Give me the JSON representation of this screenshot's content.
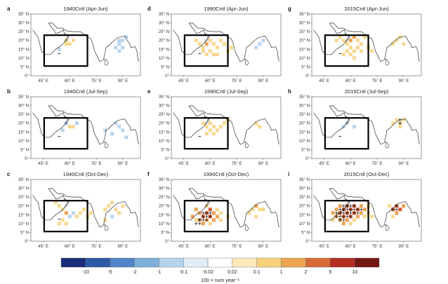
{
  "figure": {
    "lat_ticks": [
      "0°",
      "5° N",
      "10° N",
      "15° N",
      "20° N",
      "25° N",
      "30° N",
      "35° N"
    ],
    "lon_ticks": [
      "45° E",
      "60° E",
      "75° E",
      "90° E"
    ],
    "panels": [
      {
        "letter": "a",
        "title": "1940Cntl (Apr-Jun)",
        "cells": [
          [
            58,
            20,
            1
          ],
          [
            58,
            18,
            1
          ],
          [
            60,
            18,
            1
          ],
          [
            62,
            20,
            1
          ],
          [
            54,
            15,
            -1
          ],
          [
            88,
            20,
            -1
          ],
          [
            90,
            20,
            -1
          ],
          [
            88,
            18,
            -1
          ],
          [
            86,
            16,
            -1
          ],
          [
            90,
            16,
            -1
          ],
          [
            88,
            14,
            -1
          ],
          [
            92,
            22,
            -1
          ]
        ],
        "plus": []
      },
      {
        "letter": "b",
        "title": "1940Cntl (Jul-Sep)",
        "cells": [
          [
            58,
            20,
            -1
          ],
          [
            60,
            18,
            1
          ],
          [
            62,
            18,
            1
          ],
          [
            56,
            16,
            -1
          ],
          [
            64,
            20,
            -1
          ],
          [
            86,
            20,
            -1
          ],
          [
            88,
            18,
            -1
          ],
          [
            90,
            16,
            -1
          ],
          [
            84,
            14,
            -1
          ],
          [
            92,
            12,
            -1
          ],
          [
            80,
            16,
            -1
          ]
        ],
        "plus": []
      },
      {
        "letter": "c",
        "title": "1940Cntl (Oct-Dec)",
        "cells": [
          [
            52,
            22,
            1
          ],
          [
            54,
            20,
            1
          ],
          [
            56,
            18,
            1
          ],
          [
            58,
            16,
            2
          ],
          [
            60,
            14,
            -1
          ],
          [
            62,
            16,
            -1
          ],
          [
            64,
            14,
            1
          ],
          [
            66,
            16,
            1
          ],
          [
            68,
            18,
            1
          ],
          [
            56,
            12,
            1
          ],
          [
            58,
            10,
            1
          ],
          [
            54,
            10,
            1
          ],
          [
            70,
            14,
            1
          ],
          [
            72,
            16,
            1
          ],
          [
            80,
            18,
            1
          ],
          [
            82,
            20,
            1
          ],
          [
            84,
            22,
            1
          ],
          [
            86,
            18,
            1
          ],
          [
            88,
            16,
            1
          ],
          [
            84,
            14,
            -1
          ],
          [
            90,
            20,
            1
          ],
          [
            80,
            12,
            1
          ]
        ],
        "plus": []
      },
      {
        "letter": "d",
        "title": "1990Cntl (Apr-Jun)",
        "cells": [
          [
            52,
            20,
            1
          ],
          [
            54,
            18,
            1
          ],
          [
            56,
            16,
            1
          ],
          [
            58,
            18,
            2
          ],
          [
            60,
            20,
            1
          ],
          [
            62,
            18,
            1
          ],
          [
            64,
            16,
            1
          ],
          [
            66,
            20,
            1
          ],
          [
            68,
            18,
            1
          ],
          [
            60,
            14,
            1
          ],
          [
            62,
            12,
            1
          ],
          [
            58,
            12,
            1
          ],
          [
            64,
            12,
            1
          ],
          [
            70,
            14,
            1
          ],
          [
            72,
            16,
            1
          ],
          [
            56,
            14,
            1
          ],
          [
            88,
            18,
            -1
          ],
          [
            90,
            20,
            -1
          ],
          [
            86,
            16,
            -1
          ]
        ],
        "plus": []
      },
      {
        "letter": "e",
        "title": "1990Cntl (Jul-Sep)",
        "cells": [
          [
            56,
            20,
            1
          ],
          [
            58,
            18,
            1
          ],
          [
            60,
            20,
            1
          ],
          [
            62,
            18,
            1
          ],
          [
            64,
            16,
            1
          ],
          [
            66,
            18,
            1
          ],
          [
            60,
            16,
            1
          ],
          [
            58,
            14,
            1
          ],
          [
            62,
            14,
            1
          ],
          [
            68,
            20,
            1
          ],
          [
            70,
            22,
            1
          ],
          [
            86,
            20,
            1
          ],
          [
            88,
            18,
            1
          ]
        ],
        "plus": []
      },
      {
        "letter": "f",
        "title": "1990Cntl (Oct-Dec)",
        "cells": [
          [
            52,
            18,
            2
          ],
          [
            54,
            16,
            2
          ],
          [
            56,
            14,
            3
          ],
          [
            58,
            16,
            3
          ],
          [
            60,
            18,
            3
          ],
          [
            62,
            16,
            2
          ],
          [
            58,
            12,
            2
          ],
          [
            60,
            14,
            3
          ],
          [
            62,
            12,
            2
          ],
          [
            64,
            14,
            2
          ],
          [
            54,
            12,
            2
          ],
          [
            56,
            10,
            2
          ],
          [
            50,
            14,
            2
          ],
          [
            52,
            12,
            1
          ],
          [
            58,
            20,
            1
          ],
          [
            64,
            18,
            1
          ],
          [
            66,
            16,
            1
          ],
          [
            66,
            12,
            1
          ],
          [
            60,
            10,
            1
          ],
          [
            70,
            14,
            1
          ],
          [
            84,
            18,
            1
          ],
          [
            86,
            20,
            2
          ],
          [
            88,
            18,
            1
          ],
          [
            82,
            16,
            1
          ],
          [
            86,
            14,
            1
          ],
          [
            90,
            18,
            1
          ]
        ],
        "plus": [
          [
            56,
            16
          ],
          [
            58,
            16
          ],
          [
            60,
            16
          ],
          [
            56,
            14
          ],
          [
            58,
            14
          ],
          [
            60,
            14
          ],
          [
            54,
            12
          ],
          [
            56,
            12
          ],
          [
            58,
            12
          ],
          [
            52,
            10
          ],
          [
            54,
            10
          ]
        ]
      },
      {
        "letter": "g",
        "title": "2015Cntl (Apr-Jun)",
        "cells": [
          [
            52,
            20,
            1
          ],
          [
            54,
            22,
            1
          ],
          [
            56,
            20,
            1
          ],
          [
            58,
            18,
            1
          ],
          [
            60,
            20,
            2
          ],
          [
            62,
            22,
            2
          ],
          [
            64,
            20,
            1
          ],
          [
            66,
            18,
            1
          ],
          [
            68,
            22,
            1
          ],
          [
            58,
            14,
            1
          ],
          [
            60,
            16,
            1
          ],
          [
            62,
            14,
            1
          ],
          [
            64,
            16,
            1
          ],
          [
            66,
            14,
            1
          ],
          [
            60,
            12,
            1
          ],
          [
            62,
            10,
            1
          ],
          [
            56,
            12,
            1
          ],
          [
            70,
            16,
            1
          ],
          [
            72,
            14,
            1
          ],
          [
            84,
            18,
            1
          ],
          [
            86,
            20,
            1
          ],
          [
            88,
            22,
            1
          ],
          [
            90,
            18,
            1
          ]
        ],
        "plus": []
      },
      {
        "letter": "h",
        "title": "2015Cntl (Jul-Sep)",
        "cells": [
          [
            56,
            18,
            -1
          ],
          [
            58,
            20,
            -1
          ],
          [
            62,
            18,
            -1
          ],
          [
            84,
            20,
            1
          ],
          [
            86,
            22,
            1
          ],
          [
            88,
            20,
            1
          ],
          [
            90,
            22,
            1
          ],
          [
            88,
            18,
            1
          ]
        ],
        "plus": [
          [
            88,
            22
          ],
          [
            88,
            20
          ]
        ]
      },
      {
        "letter": "i",
        "title": "2015Cntl (Oct-Dec)",
        "cells": [
          [
            50,
            16,
            2
          ],
          [
            52,
            18,
            2
          ],
          [
            54,
            20,
            2
          ],
          [
            56,
            18,
            3
          ],
          [
            58,
            20,
            3
          ],
          [
            60,
            18,
            3
          ],
          [
            62,
            20,
            3
          ],
          [
            64,
            18,
            3
          ],
          [
            66,
            20,
            2
          ],
          [
            68,
            18,
            2
          ],
          [
            70,
            20,
            1
          ],
          [
            52,
            14,
            2
          ],
          [
            54,
            16,
            3
          ],
          [
            56,
            14,
            3
          ],
          [
            58,
            16,
            3
          ],
          [
            60,
            14,
            3
          ],
          [
            62,
            16,
            3
          ],
          [
            64,
            14,
            2
          ],
          [
            66,
            16,
            2
          ],
          [
            68,
            14,
            1
          ],
          [
            54,
            12,
            2
          ],
          [
            56,
            10,
            2
          ],
          [
            58,
            12,
            2
          ],
          [
            60,
            10,
            1
          ],
          [
            62,
            12,
            1
          ],
          [
            50,
            12,
            1
          ],
          [
            70,
            16,
            1
          ],
          [
            72,
            14,
            1
          ],
          [
            84,
            18,
            3
          ],
          [
            86,
            20,
            3
          ],
          [
            88,
            18,
            3
          ],
          [
            86,
            16,
            2
          ],
          [
            84,
            14,
            1
          ],
          [
            90,
            20,
            2
          ],
          [
            82,
            20,
            1
          ]
        ],
        "plus": [
          [
            52,
            16
          ],
          [
            54,
            16
          ],
          [
            56,
            16
          ],
          [
            58,
            16
          ],
          [
            60,
            16
          ],
          [
            62,
            16
          ],
          [
            64,
            16
          ],
          [
            54,
            18
          ],
          [
            56,
            18
          ],
          [
            58,
            18
          ],
          [
            60,
            18
          ],
          [
            62,
            18
          ],
          [
            64,
            18
          ],
          [
            66,
            18
          ],
          [
            56,
            20
          ],
          [
            58,
            20
          ],
          [
            60,
            20
          ],
          [
            62,
            20
          ],
          [
            52,
            14
          ],
          [
            54,
            14
          ],
          [
            56,
            14
          ],
          [
            58,
            14
          ],
          [
            60,
            14
          ],
          [
            54,
            12
          ],
          [
            56,
            12
          ],
          [
            84,
            18
          ],
          [
            86,
            18
          ],
          [
            86,
            20
          ]
        ]
      }
    ]
  },
  "colorbar": {
    "labels": [
      "-10",
      "-5",
      "-2",
      "-1",
      "-0.1",
      "-0.02",
      "0.02",
      "0.1",
      "1",
      "2",
      "5",
      "10"
    ],
    "colors": [
      "#1b2d78",
      "#2f5aa8",
      "#4f85c6",
      "#7fb0dc",
      "#b5d4ec",
      "#e0ecf6",
      "#ffffff",
      "#fbeaba",
      "#f7d07c",
      "#eda552",
      "#d86a36",
      "#b42e22",
      "#741712"
    ],
    "unit_label": "100 × num year⁻¹"
  },
  "level_colors": {
    "-1": "#b8d5ee",
    "1": "#f8d890",
    "2": "#eba353",
    "3": "#d35d35"
  }
}
